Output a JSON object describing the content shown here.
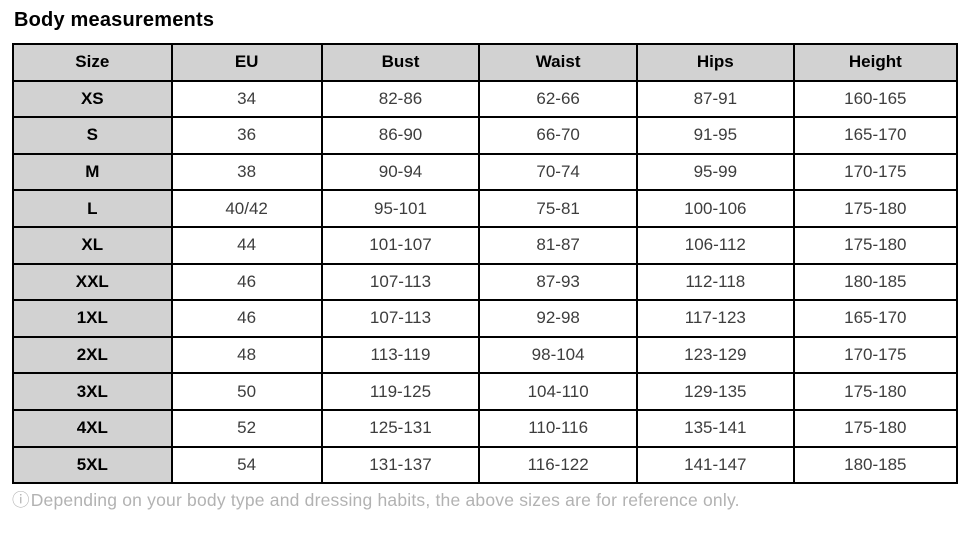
{
  "title": "Body measurements",
  "table": {
    "columns": [
      "Size",
      "EU",
      "Bust",
      "Waist",
      "Hips",
      "Height"
    ],
    "rows": [
      [
        "XS",
        "34",
        "82-86",
        "62-66",
        "87-91",
        "160-165"
      ],
      [
        "S",
        "36",
        "86-90",
        "66-70",
        "91-95",
        "165-170"
      ],
      [
        "M",
        "38",
        "90-94",
        "70-74",
        "95-99",
        "170-175"
      ],
      [
        "L",
        "40/42",
        "95-101",
        "75-81",
        "100-106",
        "175-180"
      ],
      [
        "XL",
        "44",
        "101-107",
        "81-87",
        "106-112",
        "175-180"
      ],
      [
        "XXL",
        "46",
        "107-113",
        "87-93",
        "112-118",
        "180-185"
      ],
      [
        "1XL",
        "46",
        "107-113",
        "92-98",
        "117-123",
        "165-170"
      ],
      [
        "2XL",
        "48",
        "113-119",
        "98-104",
        "123-129",
        "170-175"
      ],
      [
        "3XL",
        "50",
        "119-125",
        "104-110",
        "129-135",
        "175-180"
      ],
      [
        "4XL",
        "52",
        "125-131",
        "110-116",
        "135-141",
        "175-180"
      ],
      [
        "5XL",
        "54",
        "131-137",
        "116-122",
        "141-147",
        "180-185"
      ]
    ]
  },
  "footnote": {
    "icon": "ⓘ",
    "text": "Depending on your body type and dressing habits, the above sizes are for reference only."
  },
  "colors": {
    "header_bg": "#d2d2d2",
    "border": "#000000",
    "cell_text": "#3d3d3d",
    "footnote_text": "#b2b2b2"
  }
}
